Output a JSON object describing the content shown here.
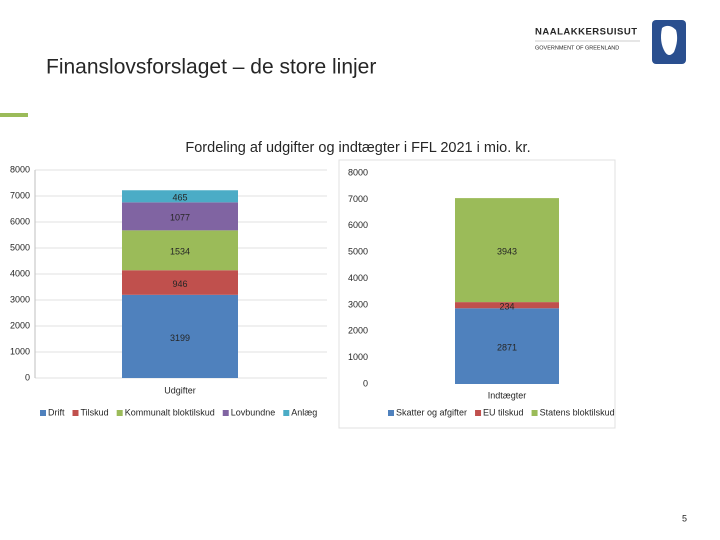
{
  "slide": {
    "title": "Finanslovsforslaget – de store linjer",
    "logo_name": "NAALAKKERSUISUT",
    "logo_sub": "GOVERNMENT OF GREENLAND",
    "chart_heading": "Fordeling af udgifter og indtægter i FFL 2021 i mio. kr.",
    "page_number": 5
  },
  "chart_data": [
    {
      "type": "stacked_bar",
      "categories": [
        "Udgifter"
      ],
      "ylim": [
        0,
        8000
      ],
      "yticks": [
        0,
        1000,
        2000,
        3000,
        4000,
        5000,
        6000,
        7000,
        8000
      ],
      "grid": true,
      "legend": "bottom",
      "series": [
        {
          "name": "Drift",
          "color": "#4f81bd",
          "values": [
            3199
          ]
        },
        {
          "name": "Tilskud",
          "color": "#c0504d",
          "values": [
            946
          ]
        },
        {
          "name": "Kommunalt bloktilskud",
          "color": "#9bbb59",
          "values": [
            1534
          ]
        },
        {
          "name": "Lovbundne",
          "color": "#8064a2",
          "values": [
            1077
          ]
        },
        {
          "name": "Anlæg",
          "color": "#4bacc6",
          "values": [
            465
          ]
        }
      ]
    },
    {
      "type": "stacked_bar",
      "categories": [
        "Indtægter"
      ],
      "ylim": [
        0,
        8000
      ],
      "yticks": [
        0,
        1000,
        2000,
        3000,
        4000,
        5000,
        6000,
        7000,
        8000
      ],
      "grid": false,
      "legend": "bottom",
      "series": [
        {
          "name": "Skatter og afgifter",
          "color": "#4f81bd",
          "values": [
            2871
          ]
        },
        {
          "name": "EU tilskud",
          "color": "#c0504d",
          "values": [
            234
          ]
        },
        {
          "name": "Statens bloktilskud",
          "color": "#9bbb59",
          "values": [
            3943
          ]
        }
      ]
    }
  ]
}
